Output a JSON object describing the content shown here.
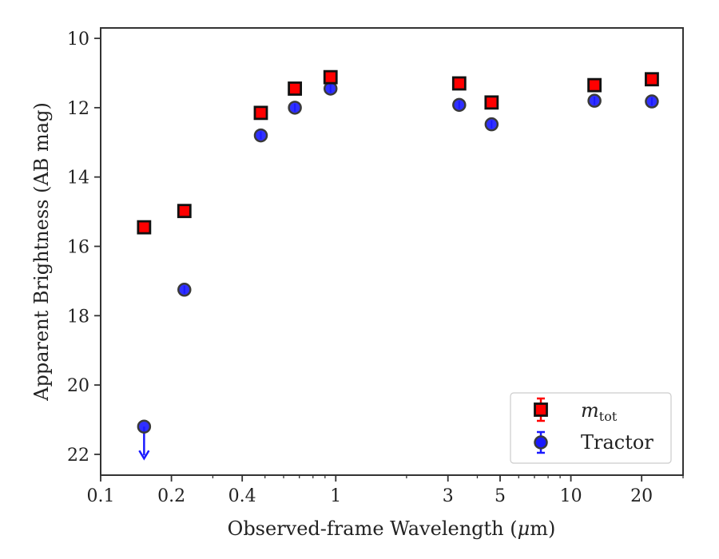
{
  "chart_data": {
    "type": "scatter",
    "xscale": "log",
    "yaxis_inverted": true,
    "xlabel_prefix": "Observed-frame Wavelength (",
    "xlabel_mu": "μ",
    "xlabel_suffix": "m)",
    "ylabel": "Apparent Brightness (AB mag)",
    "xlim": [
      0.1,
      30
    ],
    "ylim": [
      22.6,
      9.7
    ],
    "xticks": [
      {
        "value": 0.1,
        "label": "0.1"
      },
      {
        "value": 0.2,
        "label": "0.2"
      },
      {
        "value": 0.4,
        "label": "0.4"
      },
      {
        "value": 1,
        "label": "1"
      },
      {
        "value": 3,
        "label": "3"
      },
      {
        "value": 5,
        "label": "5"
      },
      {
        "value": 10,
        "label": "10"
      },
      {
        "value": 20,
        "label": "20"
      }
    ],
    "yticks": [
      {
        "value": 10,
        "label": "10"
      },
      {
        "value": 12,
        "label": "12"
      },
      {
        "value": 14,
        "label": "14"
      },
      {
        "value": 16,
        "label": "16"
      },
      {
        "value": 18,
        "label": "18"
      },
      {
        "value": 20,
        "label": "20"
      },
      {
        "value": 22,
        "label": "22"
      }
    ],
    "series": [
      {
        "name": "m_tot",
        "legend_main": "m",
        "legend_sub": "tot",
        "marker": "square",
        "color": "#ff0000",
        "edge_color": "#111111",
        "x": [
          0.153,
          0.227,
          0.48,
          0.67,
          0.95,
          3.35,
          4.6,
          12.6,
          22.1
        ],
        "y": [
          15.45,
          14.98,
          12.15,
          11.45,
          11.12,
          11.3,
          11.85,
          11.35,
          11.18
        ]
      },
      {
        "name": "Tractor",
        "legend_main": "Tractor",
        "marker": "circle",
        "color": "#1a1aff",
        "edge_color": "#3a3a3a",
        "x": [
          0.153,
          0.227,
          0.48,
          0.67,
          0.95,
          3.35,
          4.6,
          12.6,
          22.1
        ],
        "y": [
          21.2,
          17.25,
          12.8,
          12.0,
          11.45,
          11.92,
          12.48,
          11.8,
          11.82
        ],
        "upper_limit": [
          true,
          false,
          false,
          false,
          false,
          false,
          false,
          false,
          false
        ]
      }
    ],
    "grid": false,
    "legend_position": "lower-right"
  }
}
